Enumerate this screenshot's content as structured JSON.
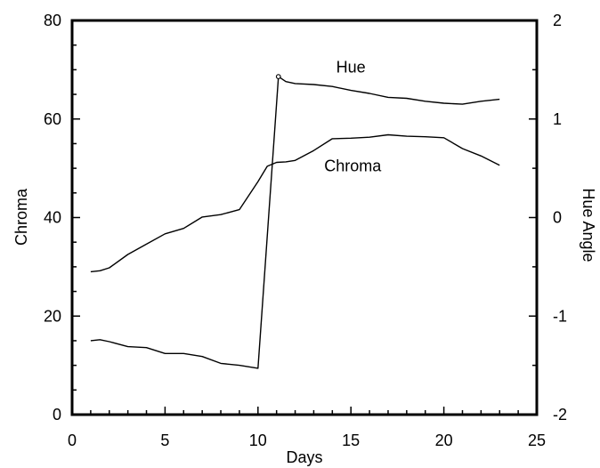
{
  "chart_data": {
    "type": "line",
    "xlabel": "Days",
    "ylabel_left": "Chroma",
    "ylabel_right": "Hue Angle",
    "xlim": [
      0,
      25
    ],
    "ylim_left": [
      0,
      80
    ],
    "ylim_right": [
      -2,
      2
    ],
    "x_ticks": [
      "0",
      "5",
      "10",
      "15",
      "20",
      "25"
    ],
    "y_left_ticks": [
      "0",
      "20",
      "40",
      "60",
      "80"
    ],
    "y_right_ticks": [
      "-2",
      "-1",
      "0",
      "1",
      "2"
    ],
    "grid": false,
    "annotations": [
      {
        "text": "Hue",
        "x": 15.0,
        "y": 70.5,
        "axis": "left"
      },
      {
        "text": "Chroma",
        "x": 15.1,
        "y": 50.5,
        "axis": "left"
      }
    ],
    "series": [
      {
        "name": "Chroma",
        "axis": "left",
        "x": [
          1,
          1.5,
          2,
          3,
          4,
          5,
          6,
          7,
          8,
          9,
          10,
          10.5,
          11,
          11.5,
          12,
          13,
          14,
          15,
          16,
          17,
          18,
          19,
          20,
          21,
          22,
          23
        ],
        "y": [
          29,
          29.2,
          29.8,
          32.5,
          34.6,
          36.7,
          37.8,
          40.1,
          40.6,
          41.6,
          47.3,
          50.4,
          51.2,
          51.3,
          51.6,
          53.6,
          56.0,
          56.1,
          56.3,
          56.8,
          56.5,
          56.4,
          56.2,
          54.0,
          52.5,
          50.6
        ]
      },
      {
        "name": "Hue",
        "axis": "right",
        "x": [
          1,
          1.5,
          2,
          3,
          4,
          5,
          6,
          7,
          8,
          9,
          10,
          11.1,
          11.5,
          12,
          13,
          14,
          15,
          16,
          17,
          18,
          19,
          20,
          21,
          22,
          23
        ],
        "y": [
          -1.25,
          -1.24,
          -1.26,
          -1.31,
          -1.32,
          -1.38,
          -1.38,
          -1.41,
          -1.48,
          -1.5,
          -1.53,
          1.43,
          1.38,
          1.36,
          1.35,
          1.33,
          1.29,
          1.26,
          1.22,
          1.21,
          1.18,
          1.16,
          1.15,
          1.18,
          1.2
        ]
      }
    ]
  }
}
